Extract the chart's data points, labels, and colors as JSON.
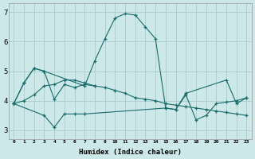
{
  "xlabel": "Humidex (Indice chaleur)",
  "background_color": "#cce8e8",
  "grid_color": "#b0d0d0",
  "line_color": "#1a6b6b",
  "xlim": [
    -0.5,
    23.5
  ],
  "ylim": [
    2.7,
    7.3
  ],
  "xticks": [
    0,
    1,
    2,
    3,
    4,
    5,
    6,
    7,
    8,
    9,
    10,
    11,
    12,
    13,
    14,
    15,
    16,
    17,
    18,
    19,
    20,
    21,
    22,
    23
  ],
  "yticks": [
    3,
    4,
    5,
    6,
    7
  ],
  "series": [
    {
      "x": [
        0,
        1,
        2,
        3,
        7,
        8,
        9,
        10,
        11,
        12,
        13,
        14,
        15,
        16,
        17,
        21,
        22,
        23
      ],
      "y": [
        3.9,
        4.6,
        5.1,
        5.0,
        4.5,
        5.35,
        6.1,
        6.8,
        6.95,
        6.9,
        6.5,
        6.1,
        3.75,
        3.7,
        4.25,
        4.7,
        3.9,
        4.1
      ]
    },
    {
      "x": [
        0,
        1,
        2,
        3,
        4,
        5,
        6,
        7,
        8
      ],
      "y": [
        3.9,
        4.6,
        5.1,
        5.0,
        4.05,
        4.55,
        4.45,
        4.55,
        4.5
      ]
    },
    {
      "x": [
        0,
        3,
        4,
        5,
        6,
        7,
        15,
        16,
        17,
        18,
        19,
        20,
        21,
        22,
        23
      ],
      "y": [
        3.9,
        3.5,
        3.1,
        3.55,
        3.55,
        3.55,
        3.75,
        3.7,
        4.2,
        3.35,
        3.5,
        3.9,
        3.95,
        4.0,
        4.1
      ]
    },
    {
      "x": [
        0,
        1,
        2,
        3,
        4,
        5,
        6,
        7,
        8,
        9,
        10,
        11,
        12,
        13,
        14,
        15,
        16,
        17,
        18,
        19,
        20,
        21,
        22,
        23
      ],
      "y": [
        3.9,
        4.0,
        4.2,
        4.5,
        4.55,
        4.7,
        4.7,
        4.6,
        4.5,
        4.45,
        4.35,
        4.25,
        4.1,
        4.05,
        4.0,
        3.9,
        3.85,
        3.8,
        3.75,
        3.7,
        3.65,
        3.6,
        3.55,
        3.5
      ]
    }
  ]
}
